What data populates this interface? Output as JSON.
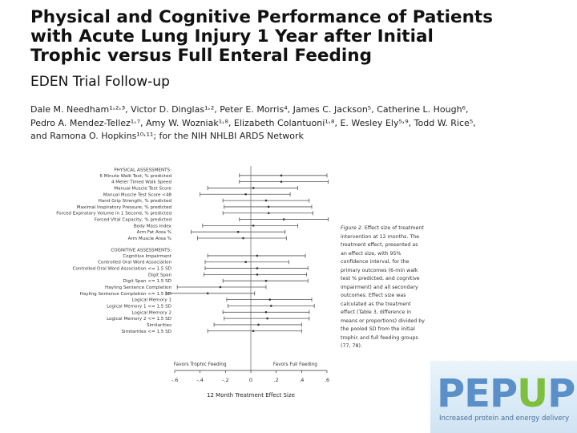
{
  "title": {
    "line1": "Physical and Cognitive Performance of Patients",
    "line2": "with Acute Lung Injury 1 Year after Initial",
    "line3": "Trophic versus Full Enteral Feeding"
  },
  "subtitle": "EDEN Trial Follow-up",
  "authors": {
    "line1": "Dale M. Needham¹˒²˒³, Victor D. Dinglas¹˒², Peter E. Morris⁴, James C. Jackson⁵, Catherine L. Hough⁶,",
    "line2": "Pedro A. Mendez-Tellez¹˒⁷, Amy W. Wozniak¹˒⁸, Elizabeth Colantuoni¹˒⁸, E. Wesley Ely⁵˒⁹, Todd W. Rice⁵,",
    "line3": "and Ramona O. Hopkins¹⁰˒¹¹; for the NIH NHLBI ARDS Network"
  },
  "caption": {
    "label": "Figure 2.",
    "text": "Effect size of treatment intervention at 12 months. The treatment effect, presented as an effect size, with 95% confidence interval, for the primary outcomes (6-min walk test % predicted, and cognitive impairment) and all secondary outcomes. Effect size was calculated as the treatment effect (Table 3, difference in means or proportions) divided by the pooled SD from the initial trophic and full feeding groups (77, 78)."
  },
  "logo": {
    "part1": "PEP",
    "part2": "U",
    "part3": "P",
    "tagline": "Increased protein and energy delivery"
  },
  "chart_data": {
    "type": "forest",
    "xlabel": "12 Month Treatment Effect Size",
    "xlim": [
      -0.6,
      0.6
    ],
    "xticks": [
      -0.6,
      -0.4,
      -0.2,
      0,
      0.2,
      0.4,
      0.6
    ],
    "xtick_labels": [
      "-.6",
      "-.4",
      "-.2",
      "0",
      ".2",
      ".4",
      ".6"
    ],
    "left_annotation": "Favors Trophic Feeding",
    "right_annotation": "Favors Full Feeding",
    "groups": [
      {
        "heading": "PHYSICAL ASSESSMENTS:",
        "rows": [
          {
            "label": "6 Minute Walk Test, % predicted",
            "estimate": 0.24,
            "lower": -0.09,
            "upper": 0.6
          },
          {
            "label": "4 Meter Timed Walk Speed",
            "estimate": 0.24,
            "lower": -0.09,
            "upper": 0.61
          },
          {
            "label": "Manual Muscle Test Score",
            "estimate": 0.02,
            "lower": -0.34,
            "upper": 0.37
          },
          {
            "label": "Manual Muscle Test Score <48",
            "estimate": -0.04,
            "lower": -0.4,
            "upper": 0.31
          },
          {
            "label": "Hand Grip Strength, % predicted",
            "estimate": 0.12,
            "lower": -0.22,
            "upper": 0.46
          },
          {
            "label": "Maximal Inspiratory Pressure, % predicted",
            "estimate": 0.14,
            "lower": -0.21,
            "upper": 0.48
          },
          {
            "label": "Forced Expiratory Volume in 1 Second, % predicted",
            "estimate": 0.14,
            "lower": -0.22,
            "upper": 0.49
          },
          {
            "label": "Forced Vital Capacity, % predicted",
            "estimate": 0.26,
            "lower": -0.09,
            "upper": 0.61
          },
          {
            "label": "Body Mass Index",
            "estimate": 0.02,
            "lower": -0.38,
            "upper": 0.37
          },
          {
            "label": "Arm Fat Area %",
            "estimate": -0.1,
            "lower": -0.47,
            "upper": 0.27
          },
          {
            "label": "Arm Muscle Area %",
            "estimate": -0.06,
            "lower": -0.42,
            "upper": 0.28
          }
        ]
      },
      {
        "heading": "COGNITIVE ASSESSMENTS:",
        "rows": [
          {
            "label": "Cognitive Impairment",
            "estimate": 0.05,
            "lower": -0.34,
            "upper": 0.43
          },
          {
            "label": "Controlled Oral Word Association",
            "estimate": -0.04,
            "lower": -0.36,
            "upper": 0.3
          },
          {
            "label": "Controlled Oral Word Association <= 1.5 SD",
            "estimate": 0.05,
            "lower": -0.36,
            "upper": 0.45
          },
          {
            "label": "Digit Span",
            "estimate": 0.05,
            "lower": -0.37,
            "upper": 0.44
          },
          {
            "label": "Digit Span <= 1.5 SD",
            "estimate": 0.12,
            "lower": -0.22,
            "upper": 0.45
          },
          {
            "label": "Hayling Sentence Completion",
            "estimate": -0.24,
            "lower": -0.58,
            "upper": 0.12
          },
          {
            "label": "Hayling Sentence Completion <= 1.5 SD",
            "estimate": -0.34,
            "lower": -0.67,
            "upper": 0.03
          },
          {
            "label": "Logical Memory 1",
            "estimate": 0.15,
            "lower": -0.19,
            "upper": 0.48
          },
          {
            "label": "Logical Memory 1 <= 1.5 SD",
            "estimate": 0.16,
            "lower": -0.18,
            "upper": 0.5
          },
          {
            "label": "Logical Memory 2",
            "estimate": 0.12,
            "lower": -0.22,
            "upper": 0.46
          },
          {
            "label": "Logical Memory 2 <= 1.5 SD",
            "estimate": 0.13,
            "lower": -0.21,
            "upper": 0.46
          },
          {
            "label": "Similarities",
            "estimate": 0.06,
            "lower": -0.29,
            "upper": 0.4
          },
          {
            "label": "Similarities <= 1.5 SD",
            "estimate": 0.02,
            "lower": -0.34,
            "upper": 0.4
          }
        ]
      }
    ]
  }
}
